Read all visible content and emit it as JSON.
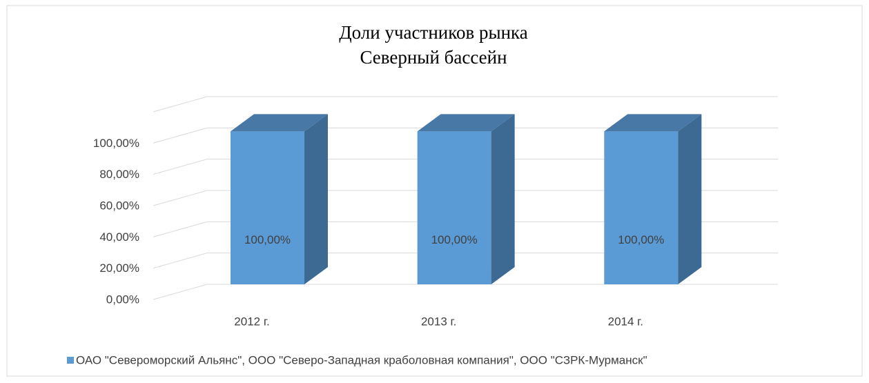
{
  "chart_data": {
    "type": "bar3d",
    "title": "Доли участников рынка",
    "subtitle": "Северный бассейн",
    "categories": [
      "2012 г.",
      "2013 г.",
      "2014 г."
    ],
    "series": [
      {
        "name": "ОАО \"Североморский Альянс\", ООО \"Северо-Западная краболовная компания\", ООО \"СЗРК-Мурманск\"",
        "color": "#5b9bd5",
        "values": [
          100,
          100,
          100
        ],
        "value_labels": [
          "100,00%",
          "100,00%",
          "100,00%"
        ]
      }
    ],
    "ylim": [
      0,
      120
    ],
    "yticks": [
      {
        "value": 0,
        "label": "0,00%"
      },
      {
        "value": 20,
        "label": "20,00%"
      },
      {
        "value": 40,
        "label": "40,00%"
      },
      {
        "value": 60,
        "label": "60,00%"
      },
      {
        "value": 80,
        "label": "80,00%"
      },
      {
        "value": 100,
        "label": "100,00%"
      }
    ],
    "grid": true,
    "legend": "bottom"
  }
}
